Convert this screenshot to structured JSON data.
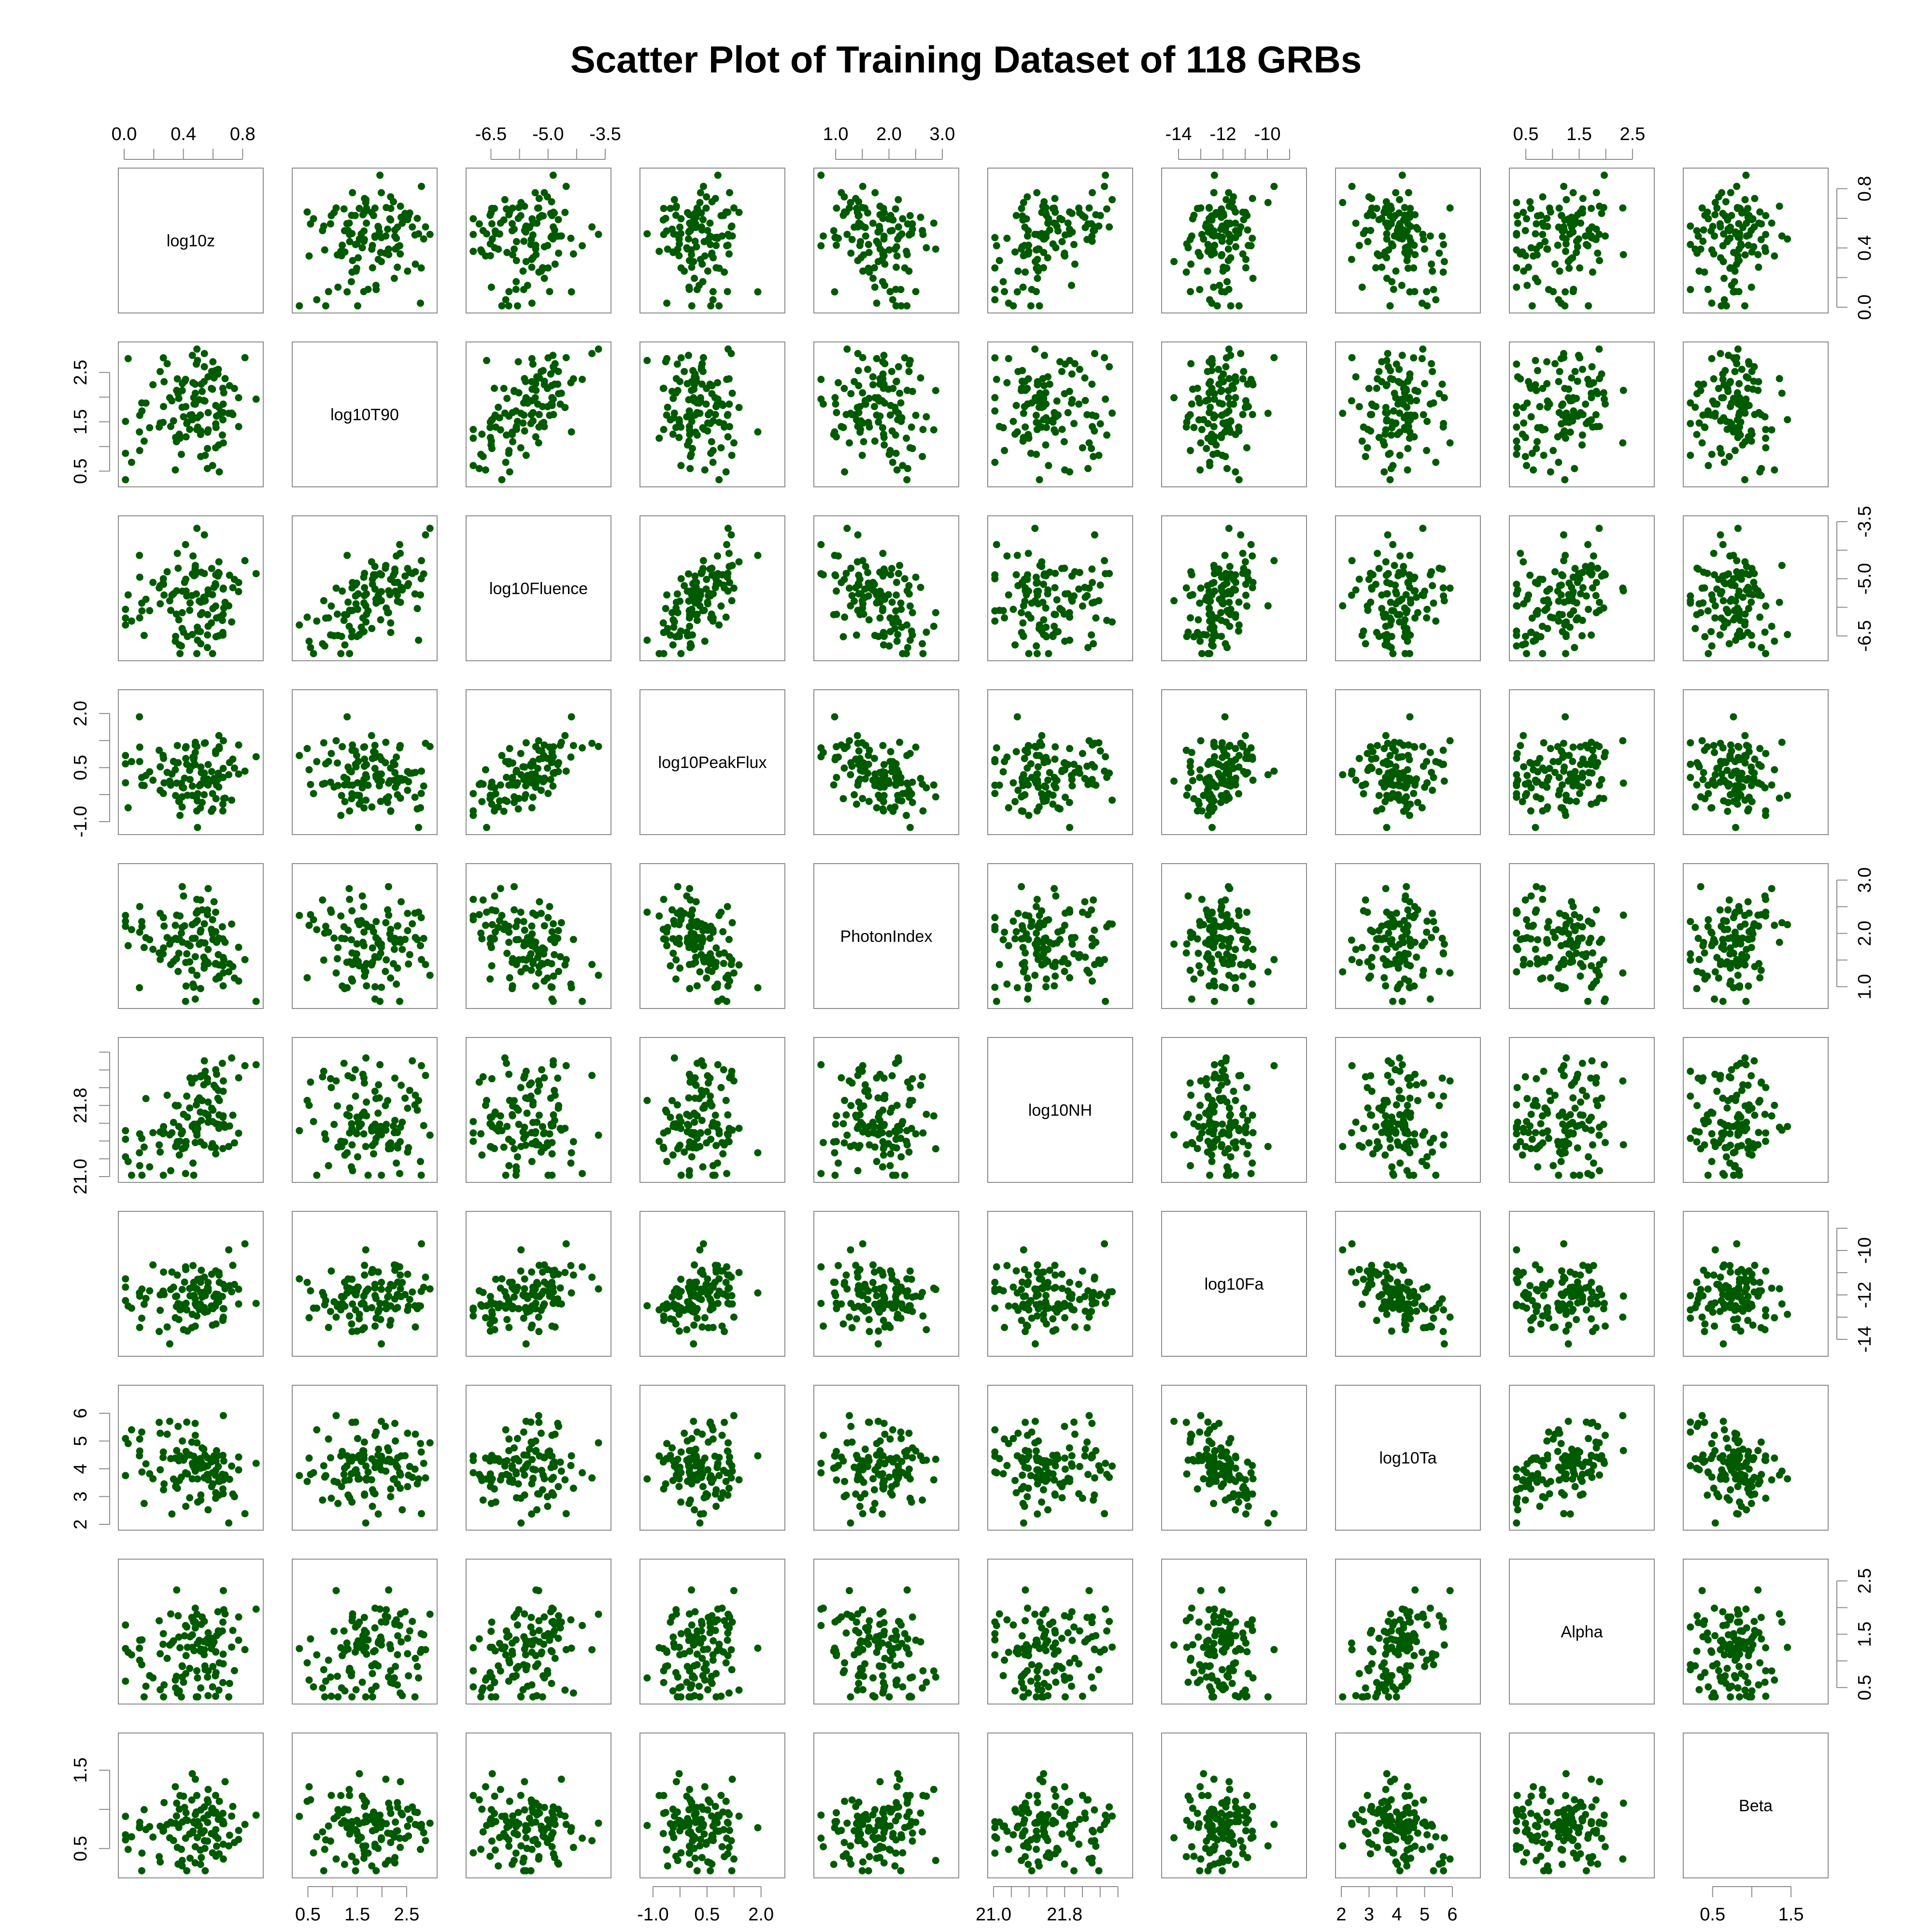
{
  "chart_data": {
    "type": "scatter-matrix",
    "title": "Scatter Plot of Training Dataset of  118  GRBs",
    "point_color": "#005a00",
    "n_points": 118,
    "variables": [
      {
        "name": "log10z",
        "range": [
          0.0,
          0.9
        ],
        "ticks": [
          "0.0",
          "0.4",
          "0.8"
        ],
        "tick_values": [
          0.0,
          0.4,
          0.8
        ],
        "minor_ticks": [
          0.2,
          0.6
        ],
        "axis_side": "top",
        "mean": 0.45,
        "sd": 0.2
      },
      {
        "name": "log10T90",
        "range": [
          0.3,
          3.0
        ],
        "ticks": [
          "0.5",
          "1.5",
          "2.5"
        ],
        "tick_values": [
          0.5,
          1.5,
          2.5
        ],
        "minor_ticks": [
          1.0,
          2.0
        ],
        "axis_side": "left",
        "mean": 1.7,
        "sd": 0.6
      },
      {
        "name": "log10Fluence",
        "range": [
          -7.0,
          -3.5
        ],
        "ticks": [
          "-6.5",
          "-5.0",
          "-3.5"
        ],
        "tick_values": [
          -6.5,
          -5.0,
          -3.5
        ],
        "minor_ticks": [
          -5.75,
          -4.25
        ],
        "axis_side": "top",
        "mean": -5.5,
        "sd": 0.7
      },
      {
        "name": "log10PeakFlux",
        "range": [
          -1.2,
          2.5
        ],
        "ticks": [
          "-1.0",
          "0.5",
          "2.0"
        ],
        "tick_values": [
          -1.0,
          0.5,
          2.0
        ],
        "minor_ticks": [
          -0.25,
          1.25
        ],
        "axis_side": "left",
        "mean": 0.4,
        "sd": 0.6
      },
      {
        "name": "PhotonIndex",
        "range": [
          0.7,
          3.2
        ],
        "ticks": [
          "1.0",
          "2.0",
          "3.0"
        ],
        "tick_values": [
          1.0,
          2.0,
          3.0
        ],
        "minor_ticks": [
          1.5,
          2.5
        ],
        "axis_side": "top",
        "mean": 1.7,
        "sd": 0.45
      },
      {
        "name": "log10NH",
        "range": [
          21.0,
          22.5
        ],
        "ticks": [
          "21.0",
          "21.8"
        ],
        "tick_values": [
          21.0,
          21.8
        ],
        "minor_ticks": [
          21.2,
          21.4,
          21.6,
          22.0,
          22.2,
          22.4
        ],
        "axis_side": "left",
        "mean": 21.6,
        "sd": 0.35
      },
      {
        "name": "log10Fa",
        "range": [
          -14.5,
          -8.5
        ],
        "ticks": [
          "-14",
          "-12",
          "-10"
        ],
        "tick_values": [
          -14,
          -12,
          -10
        ],
        "minor_ticks": [
          -13,
          -11,
          -9
        ],
        "axis_side": "top",
        "mean": -12.0,
        "sd": 0.8
      },
      {
        "name": "log10Ta",
        "range": [
          2.0,
          6.8
        ],
        "ticks": [
          "2",
          "3",
          "4",
          "5",
          "6"
        ],
        "tick_values": [
          2,
          3,
          4,
          5,
          6
        ],
        "minor_ticks": [],
        "axis_side": "left",
        "mean": 4.0,
        "sd": 0.8
      },
      {
        "name": "Alpha",
        "range": [
          0.3,
          2.8
        ],
        "ticks": [
          "0.5",
          "1.5",
          "2.5"
        ],
        "tick_values": [
          0.5,
          1.5,
          2.5
        ],
        "minor_ticks": [
          1.0,
          2.0
        ],
        "axis_side": "top",
        "mean": 1.2,
        "sd": 0.5
      },
      {
        "name": "Beta",
        "range": [
          0.2,
          1.9
        ],
        "ticks": [
          "0.5",
          "1.5"
        ],
        "tick_values": [
          0.5,
          1.5
        ],
        "minor_ticks": [
          1.0
        ],
        "axis_side": "left",
        "mean": 0.8,
        "sd": 0.28
      }
    ],
    "correlations": [
      [
        1.0,
        0.12,
        -0.05,
        -0.15,
        -0.12,
        0.45,
        0.05,
        -0.2,
        0.15,
        0.1
      ],
      [
        0.12,
        1.0,
        0.6,
        -0.2,
        -0.15,
        -0.05,
        -0.05,
        0.25,
        0.25,
        0.05
      ],
      [
        -0.05,
        0.6,
        1.0,
        0.65,
        -0.5,
        0.0,
        0.3,
        0.2,
        0.25,
        0.0
      ],
      [
        -0.15,
        -0.2,
        0.65,
        1.0,
        -0.45,
        0.05,
        0.35,
        0.0,
        0.05,
        0.0
      ],
      [
        -0.12,
        -0.15,
        -0.5,
        -0.45,
        1.0,
        0.05,
        -0.15,
        0.05,
        -0.05,
        0.1
      ],
      [
        0.45,
        -0.05,
        0.0,
        0.05,
        0.05,
        1.0,
        0.0,
        -0.05,
        0.1,
        0.05
      ],
      [
        0.05,
        -0.05,
        0.3,
        0.35,
        -0.15,
        0.0,
        1.0,
        -0.65,
        -0.2,
        -0.05
      ],
      [
        -0.2,
        0.25,
        0.2,
        0.0,
        0.05,
        -0.05,
        -0.65,
        1.0,
        0.45,
        -0.1
      ],
      [
        0.15,
        0.25,
        0.25,
        0.05,
        -0.05,
        0.1,
        -0.2,
        0.45,
        1.0,
        0.3
      ],
      [
        0.1,
        0.05,
        0.0,
        0.0,
        0.1,
        0.05,
        -0.05,
        -0.1,
        0.3,
        1.0
      ]
    ],
    "grid": false,
    "legend": "none"
  }
}
